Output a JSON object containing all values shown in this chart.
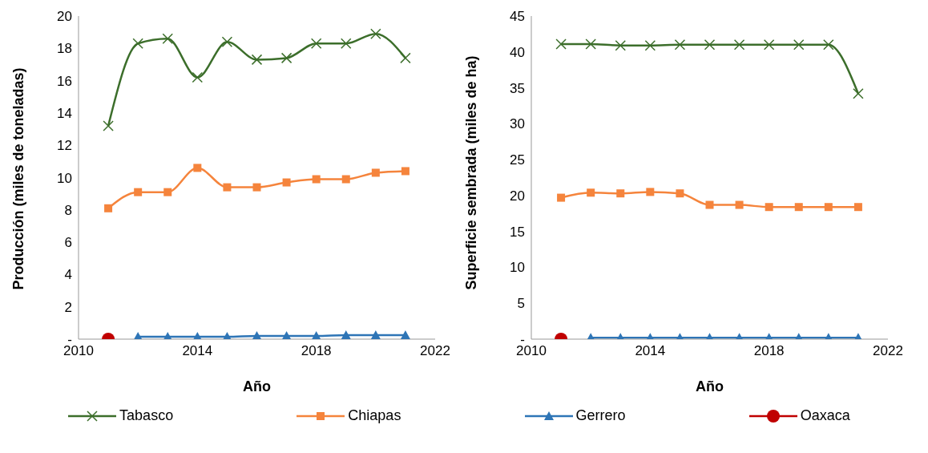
{
  "chart_data": [
    {
      "type": "line",
      "xlabel": "Año",
      "ylabel": "Producción (miles de toneladas)",
      "x": [
        2011,
        2012,
        2013,
        2014,
        2015,
        2016,
        2017,
        2018,
        2019,
        2020,
        2021
      ],
      "xlim": [
        2010,
        2022
      ],
      "xticks": [
        2010,
        2014,
        2018,
        2022
      ],
      "ylim": [
        0,
        20
      ],
      "yticks": [
        {
          "value": 0,
          "label": "-"
        },
        2,
        4,
        6,
        8,
        10,
        12,
        14,
        16,
        18,
        20
      ],
      "grid": false,
      "legend": "bottom",
      "series": [
        {
          "name": "Tabasco",
          "color": "#3c6e2b",
          "marker": "cross",
          "values": [
            13.2,
            18.3,
            18.6,
            16.2,
            18.4,
            17.3,
            17.4,
            18.3,
            18.3,
            18.9,
            17.4
          ]
        },
        {
          "name": "Chiapas",
          "color": "#f5843c",
          "marker": "square",
          "values": [
            8.1,
            9.1,
            9.1,
            10.6,
            9.4,
            9.4,
            9.7,
            9.9,
            9.9,
            10.3,
            10.4
          ]
        },
        {
          "name": "Gerrero",
          "color": "#2e75b6",
          "marker": "triangle",
          "values": [
            null,
            0.15,
            0.15,
            0.15,
            0.15,
            0.2,
            0.2,
            0.2,
            0.25,
            0.25,
            0.25
          ]
        },
        {
          "name": "Oaxaca",
          "color": "#c00000",
          "marker": "circle",
          "values": [
            0,
            null,
            null,
            null,
            null,
            null,
            null,
            null,
            null,
            null,
            null
          ]
        }
      ]
    },
    {
      "type": "line",
      "xlabel": "Año",
      "ylabel": "Superficie sembrada (miles de ha)",
      "x": [
        2011,
        2012,
        2013,
        2014,
        2015,
        2016,
        2017,
        2018,
        2019,
        2020,
        2021
      ],
      "xlim": [
        2010,
        2022
      ],
      "xticks": [
        2010,
        2014,
        2018,
        2022
      ],
      "ylim": [
        0,
        45
      ],
      "yticks": [
        {
          "value": 0,
          "label": "-"
        },
        5,
        10,
        15,
        20,
        25,
        30,
        35,
        40,
        45
      ],
      "grid": false,
      "legend": "bottom",
      "series": [
        {
          "name": "Tabasco",
          "color": "#3c6e2b",
          "marker": "cross",
          "values": [
            41.1,
            41.1,
            40.9,
            40.9,
            41,
            41,
            41,
            41,
            41,
            41,
            34.2
          ]
        },
        {
          "name": "Chiapas",
          "color": "#f5843c",
          "marker": "square",
          "values": [
            19.7,
            20.4,
            20.3,
            20.5,
            20.3,
            18.7,
            18.7,
            18.4,
            18.4,
            18.4,
            18.4
          ]
        },
        {
          "name": "Gerrero",
          "color": "#2e75b6",
          "marker": "triangle",
          "values": [
            null,
            0.2,
            0.2,
            0.2,
            0.2,
            0.2,
            0.2,
            0.2,
            0.2,
            0.2,
            0.2
          ]
        },
        {
          "name": "Oaxaca",
          "color": "#c00000",
          "marker": "circle",
          "values": [
            0,
            null,
            null,
            null,
            null,
            null,
            null,
            null,
            null,
            null,
            null
          ]
        }
      ]
    }
  ]
}
